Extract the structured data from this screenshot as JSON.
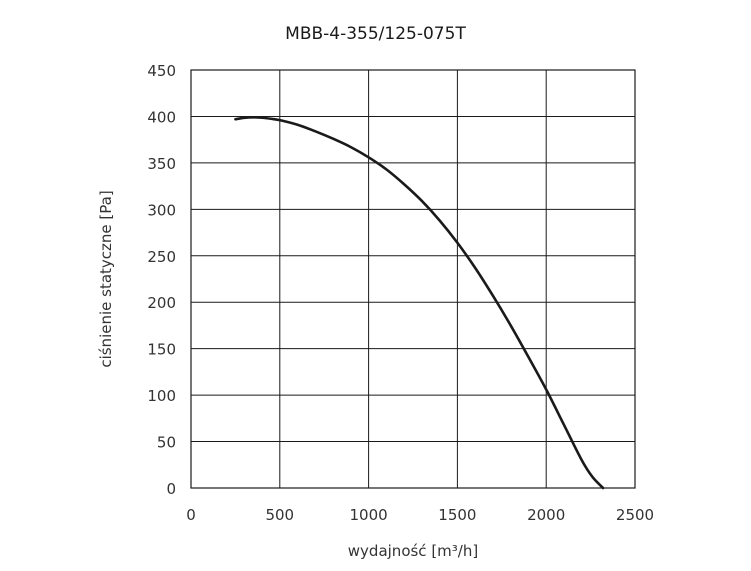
{
  "chart_data": {
    "type": "line",
    "title": "MBB-4-355/125-075T",
    "xlabel": "wydajność [m³/h]",
    "ylabel": "ciśnienie statyczne [Pa]",
    "xlim": [
      0,
      2500
    ],
    "ylim": [
      0,
      450
    ],
    "x_ticks": [
      "0",
      "500",
      "1000",
      "1500",
      "2000",
      "2500"
    ],
    "y_ticks": [
      "0",
      "50",
      "100",
      "150",
      "200",
      "250",
      "300",
      "350",
      "400",
      "450"
    ],
    "grid": true,
    "series": [
      {
        "color": "#1a1a1a",
        "points": [
          [
            250,
            397
          ],
          [
            300,
            398.5
          ],
          [
            350,
            399
          ],
          [
            400,
            398.6
          ],
          [
            450,
            397.5
          ],
          [
            500,
            396
          ],
          [
            600,
            391
          ],
          [
            700,
            384
          ],
          [
            800,
            376
          ],
          [
            900,
            367
          ],
          [
            1000,
            356
          ],
          [
            1100,
            343
          ],
          [
            1200,
            327
          ],
          [
            1300,
            309
          ],
          [
            1400,
            288
          ],
          [
            1500,
            264
          ],
          [
            1600,
            237
          ],
          [
            1700,
            207
          ],
          [
            1800,
            175
          ],
          [
            1900,
            141
          ],
          [
            2000,
            106
          ],
          [
            2100,
            68
          ],
          [
            2200,
            30
          ],
          [
            2260,
            12
          ],
          [
            2320,
            0
          ]
        ]
      }
    ]
  }
}
